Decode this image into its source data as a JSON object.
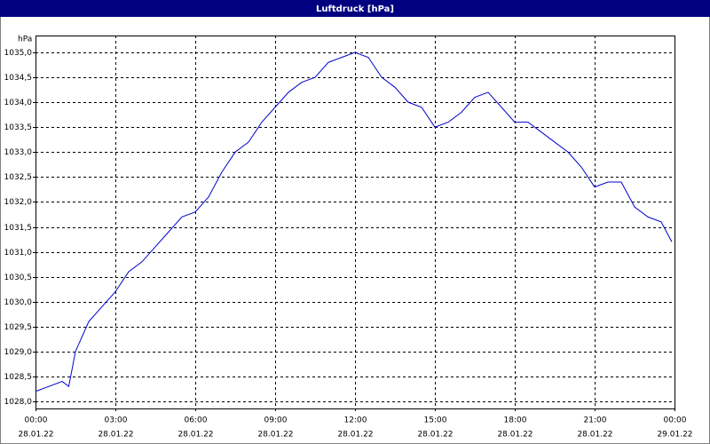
{
  "chart_data": {
    "type": "line",
    "title": "Luftdruck [hPa]",
    "y_label": "hPa",
    "x": [
      0,
      0.5,
      1,
      1.25,
      1.5,
      2,
      2.5,
      3,
      3.5,
      4,
      4.5,
      5,
      5.5,
      6,
      6.5,
      7,
      7.5,
      8,
      8.5,
      9,
      9.5,
      10,
      10.5,
      11,
      11.5,
      12,
      12.5,
      13,
      13.5,
      14,
      14.5,
      15,
      15.5,
      16,
      16.5,
      17,
      17.5,
      18,
      18.5,
      19,
      19.5,
      20,
      20.5,
      21,
      21.5,
      22,
      22.5,
      23,
      23.5,
      23.9
    ],
    "series": [
      {
        "name": "Luftdruck",
        "color": "#0000cc",
        "values": [
          1028.2,
          1028.3,
          1028.4,
          1028.3,
          1029.0,
          1029.6,
          1029.9,
          1030.2,
          1030.6,
          1030.8,
          1031.1,
          1031.4,
          1031.7,
          1031.8,
          1032.1,
          1032.6,
          1033.0,
          1033.2,
          1033.6,
          1033.9,
          1034.2,
          1034.4,
          1034.5,
          1034.8,
          1034.9,
          1035.0,
          1034.9,
          1034.5,
          1034.3,
          1034.0,
          1033.9,
          1033.5,
          1033.6,
          1033.8,
          1034.1,
          1034.2,
          1033.9,
          1033.6,
          1033.6,
          1033.4,
          1033.2,
          1033.0,
          1032.7,
          1032.3,
          1032.4,
          1032.4,
          1031.9,
          1031.7,
          1031.6,
          1031.2
        ]
      }
    ],
    "xlim": [
      0,
      24
    ],
    "xticks": [
      {
        "value": 0,
        "label": "00:00"
      },
      {
        "value": 3,
        "label": "03:00"
      },
      {
        "value": 6,
        "label": "06:00"
      },
      {
        "value": 9,
        "label": "09:00"
      },
      {
        "value": 12,
        "label": "12:00"
      },
      {
        "value": 15,
        "label": "15:00"
      },
      {
        "value": 18,
        "label": "18:00"
      },
      {
        "value": 21,
        "label": "21:00"
      },
      {
        "value": 24,
        "label": "00:00"
      }
    ],
    "xtick_dates": [
      "28.01.22",
      "28.01.22",
      "28.01.22",
      "28.01.22",
      "28.01.22",
      "28.01.22",
      "28.01.22",
      "28.01.22",
      "29.01.22"
    ],
    "ylim": [
      1028.0,
      1035.0
    ],
    "yticks": [
      {
        "value": 1028.0,
        "label": "1028,0"
      },
      {
        "value": 1028.5,
        "label": "1028,5"
      },
      {
        "value": 1029.0,
        "label": "1029,0"
      },
      {
        "value": 1029.5,
        "label": "1029,5"
      },
      {
        "value": 1030.0,
        "label": "1030,0"
      },
      {
        "value": 1030.5,
        "label": "1030,5"
      },
      {
        "value": 1031.0,
        "label": "1031,0"
      },
      {
        "value": 1031.5,
        "label": "1031,5"
      },
      {
        "value": 1032.0,
        "label": "1032,0"
      },
      {
        "value": 1032.5,
        "label": "1032,5"
      },
      {
        "value": 1033.0,
        "label": "1033,0"
      },
      {
        "value": 1033.5,
        "label": "1033,5"
      },
      {
        "value": 1034.0,
        "label": "1034,0"
      },
      {
        "value": 1034.5,
        "label": "1034,5"
      },
      {
        "value": 1035.0,
        "label": "1035,0"
      }
    ],
    "grid": true
  }
}
